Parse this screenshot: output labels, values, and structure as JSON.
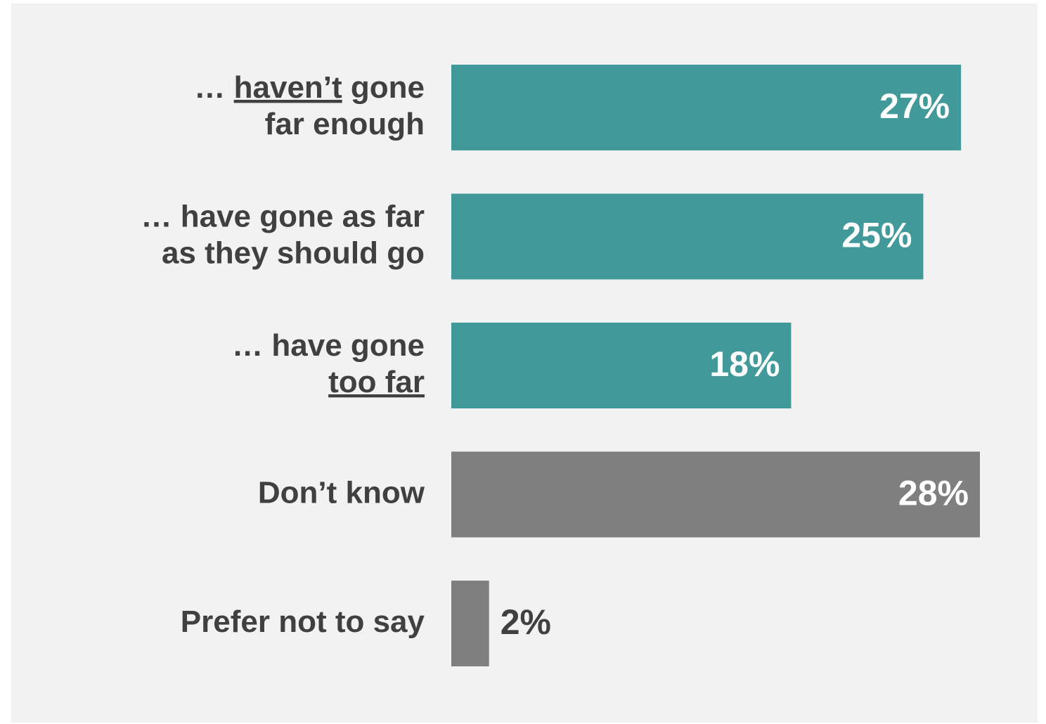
{
  "chart_data": {
    "type": "bar",
    "orientation": "horizontal",
    "categories": [
      "… haven’t gone far enough",
      "… have gone as far as they should go",
      "… have gone too far",
      "Don’t know",
      "Prefer not to say"
    ],
    "underline": [
      "haven’t",
      null,
      "too far",
      null,
      null
    ],
    "values": [
      27,
      25,
      18,
      28,
      2
    ],
    "value_labels": [
      "27%",
      "25%",
      "18%",
      "28%",
      "2%"
    ],
    "colors": [
      "#429999",
      "#429999",
      "#429999",
      "#7f7f7f",
      "#7f7f7f"
    ]
  }
}
